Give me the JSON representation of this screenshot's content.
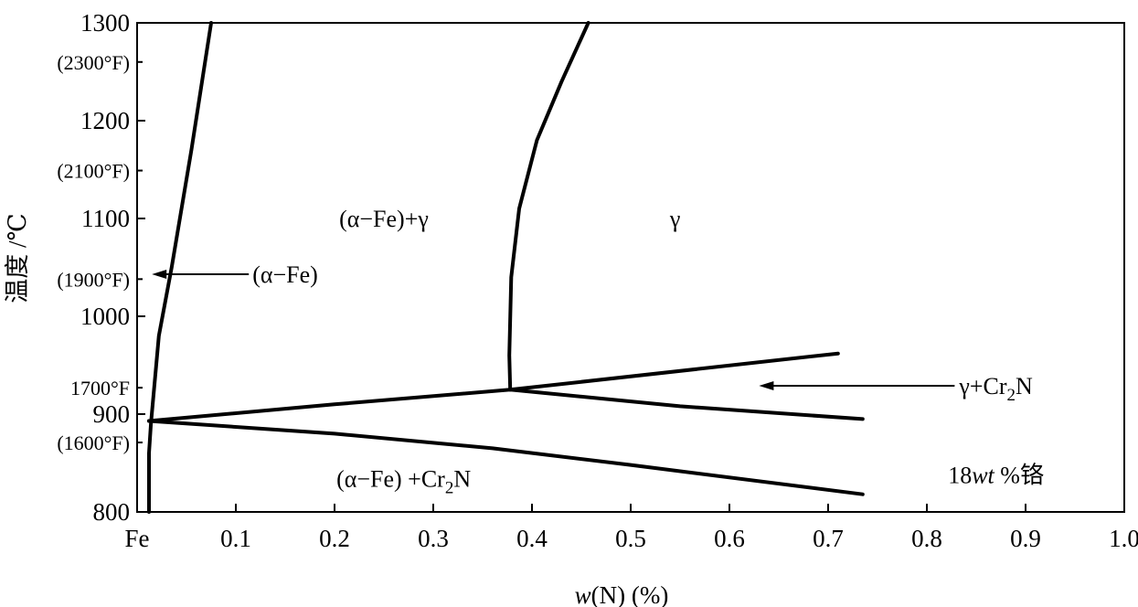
{
  "chart_data": {
    "type": "line",
    "xlabel": {
      "var": "w",
      "rest": "(N) (%)"
    },
    "ylabel": "温度 /℃",
    "xlim": [
      0,
      1.0
    ],
    "ylim": [
      800,
      1300
    ],
    "grid": false,
    "x_ticks": [
      {
        "value": 0,
        "label": "Fe"
      },
      {
        "value": 0.1,
        "label": "0.1"
      },
      {
        "value": 0.2,
        "label": "0.2"
      },
      {
        "value": 0.3,
        "label": "0.3"
      },
      {
        "value": 0.4,
        "label": "0.4"
      },
      {
        "value": 0.5,
        "label": "0.5"
      },
      {
        "value": 0.6,
        "label": "0.6"
      },
      {
        "value": 0.7,
        "label": "0.7"
      },
      {
        "value": 0.8,
        "label": "0.8"
      },
      {
        "value": 0.9,
        "label": "0.9"
      },
      {
        "value": 1.0,
        "label": "1.0"
      }
    ],
    "y_ticks": [
      {
        "value": 800,
        "label": "800"
      },
      {
        "value": 900,
        "label": "900"
      },
      {
        "value": 1000,
        "label": "1000"
      },
      {
        "value": 1100,
        "label": "1100"
      },
      {
        "value": 1200,
        "label": "1200"
      },
      {
        "value": 1300,
        "label": "1300"
      }
    ],
    "fahrenheit_ticks": [
      {
        "value": 1260,
        "label": "(2300°F)"
      },
      {
        "value": 1149,
        "label": "(2100°F)"
      },
      {
        "value": 1038,
        "label": "(1900°F)"
      },
      {
        "value": 927,
        "label": "1700°F"
      },
      {
        "value": 871,
        "label": "(1600°F)"
      }
    ],
    "series": [
      {
        "points": [
          [
            0.012,
            800
          ],
          [
            0.012,
            860
          ],
          [
            0.014,
            890
          ],
          [
            0.022,
            980
          ],
          [
            0.035,
            1050
          ],
          [
            0.055,
            1170
          ],
          [
            0.075,
            1300
          ]
        ]
      },
      {
        "points": [
          [
            0.378,
            925
          ],
          [
            0.377,
            960
          ],
          [
            0.379,
            1040
          ],
          [
            0.387,
            1110
          ],
          [
            0.405,
            1180
          ],
          [
            0.43,
            1240
          ],
          [
            0.457,
            1300
          ]
        ]
      },
      {
        "points": [
          [
            0.012,
            893
          ],
          [
            0.2,
            910
          ],
          [
            0.378,
            925
          ],
          [
            0.71,
            962
          ]
        ]
      },
      {
        "points": [
          [
            0.378,
            925
          ],
          [
            0.55,
            908
          ],
          [
            0.735,
            895
          ]
        ]
      },
      {
        "points": [
          [
            0.012,
            893
          ],
          [
            0.2,
            880
          ],
          [
            0.36,
            865
          ],
          [
            0.5,
            848
          ],
          [
            0.735,
            818
          ]
        ]
      }
    ],
    "annotations": [
      {
        "text": "(α−Fe)+γ",
        "x": 0.25,
        "y": 1100
      },
      {
        "text": "γ",
        "x": 0.545,
        "y": 1100
      },
      {
        "text": "(α−Fe)",
        "x": 0.15,
        "y": 1043,
        "arrow_to": [
          0.015,
          1043
        ]
      },
      {
        "text": "γ+Cr",
        "sub": "2",
        "tail": "N",
        "x": 0.87,
        "y": 929,
        "arrow_to": [
          0.63,
          929
        ]
      },
      {
        "text": "(α−Fe) +Cr",
        "sub": "2",
        "tail": "N",
        "x": 0.27,
        "y": 834
      },
      {
        "text": "18",
        "italic": "wt",
        "tail": " %铬",
        "x": 0.87,
        "y": 838
      }
    ]
  }
}
